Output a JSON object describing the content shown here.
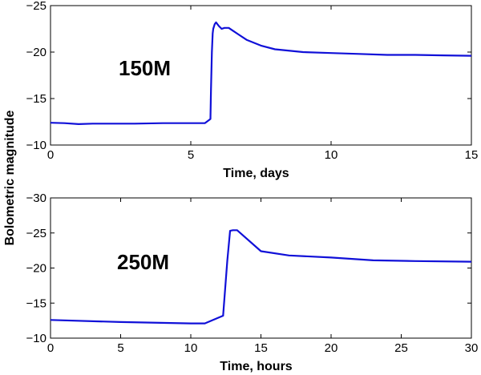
{
  "figure": {
    "shared_ylabel": "Bolometric magnitude"
  },
  "chart_data": [
    {
      "type": "line",
      "annotation": "150M",
      "xlabel": "Time, days",
      "ylabel": "Bolometric magnitude",
      "xlim": [
        0,
        15
      ],
      "ylim": [
        -25,
        -10
      ],
      "y_inverted": true,
      "xticks": [
        0,
        5,
        10,
        15
      ],
      "yticks": [
        -25,
        -20,
        -15,
        -10
      ],
      "grid": false,
      "color": "#1010d8",
      "series": [
        {
          "x": [
            0,
            0.5,
            1.0,
            1.5,
            2.0,
            3.0,
            4.0,
            5.0,
            5.5,
            5.7,
            5.72,
            5.75,
            5.78,
            5.8,
            5.85,
            5.9,
            6.0,
            6.1,
            6.2,
            6.35,
            6.5,
            6.7,
            7.0,
            7.5,
            8.0,
            9.0,
            10.0,
            11.0,
            12.0,
            13.0,
            14.0,
            15.0
          ],
          "y": [
            -12.4,
            -12.35,
            -12.25,
            -12.3,
            -12.3,
            -12.3,
            -12.35,
            -12.35,
            -12.35,
            -12.8,
            -16,
            -20,
            -22,
            -22.5,
            -23.0,
            -23.2,
            -22.8,
            -22.5,
            -22.6,
            -22.6,
            -22.3,
            -21.9,
            -21.3,
            -20.7,
            -20.3,
            -20.0,
            -19.9,
            -19.8,
            -19.7,
            -19.7,
            -19.65,
            -19.6
          ]
        }
      ]
    },
    {
      "type": "line",
      "annotation": "250M",
      "xlabel": "Time, hours",
      "ylabel": "Bolometric magnitude",
      "xlim": [
        0,
        30
      ],
      "ylim": [
        -30,
        -10
      ],
      "y_inverted": true,
      "xticks": [
        0,
        5,
        10,
        15,
        20,
        25,
        30
      ],
      "yticks": [
        -30,
        -25,
        -20,
        -15,
        -10
      ],
      "grid": false,
      "color": "#1010d8",
      "series": [
        {
          "x": [
            0,
            5,
            10,
            11,
            12.3,
            12.6,
            12.8,
            13.0,
            13.3,
            15.0,
            17.0,
            20.0,
            23.0,
            26.0,
            30.0
          ],
          "y": [
            -12.6,
            -12.3,
            -12.1,
            -12.1,
            -13.2,
            -21.0,
            -25.3,
            -25.4,
            -25.4,
            -22.4,
            -21.8,
            -21.5,
            -21.1,
            -21.0,
            -20.9
          ]
        }
      ]
    }
  ]
}
